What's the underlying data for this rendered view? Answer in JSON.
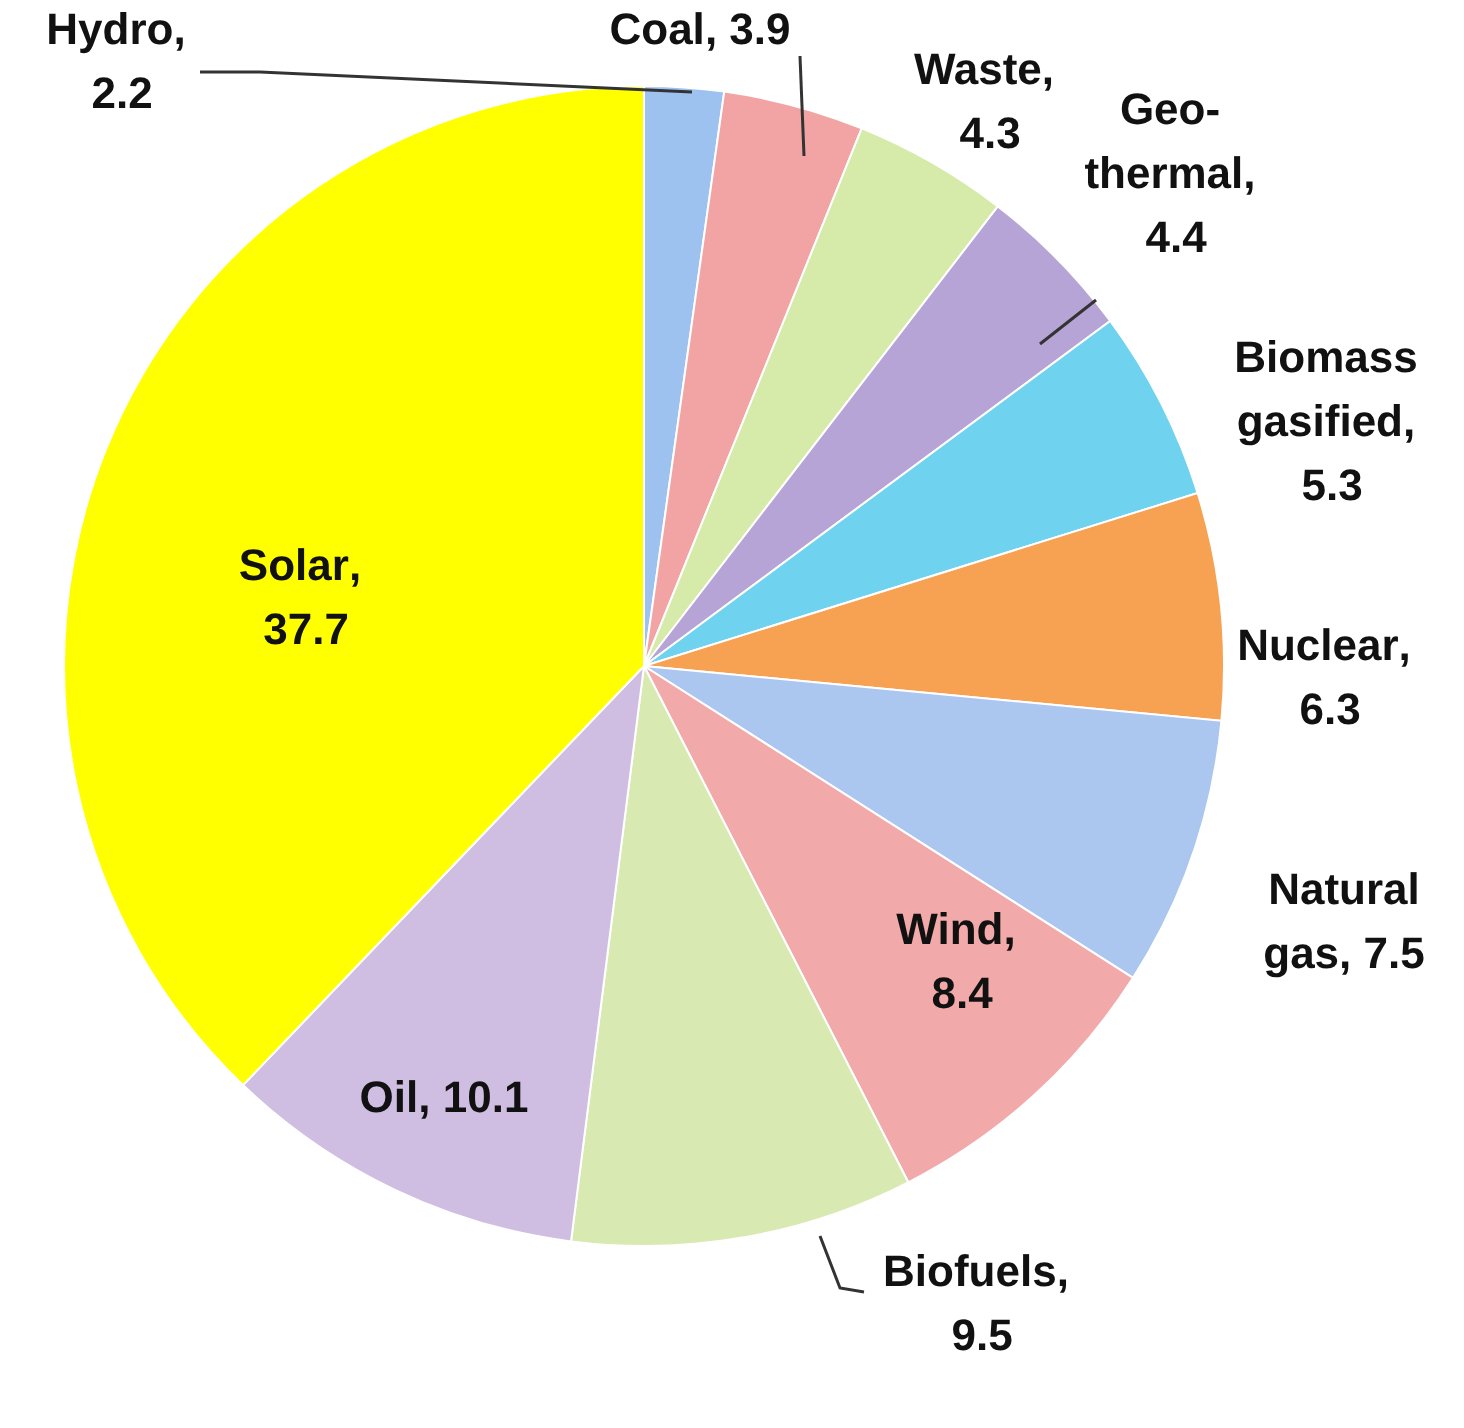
{
  "chart_data": {
    "type": "pie",
    "categories": [
      "Hydro",
      "Coal",
      "Waste",
      "Geo-thermal",
      "Biomass gasified",
      "Nuclear",
      "Natural gas",
      "Wind",
      "Biofuels",
      "Oil",
      "Solar"
    ],
    "values": [
      2.2,
      3.9,
      4.3,
      4.4,
      5.3,
      6.3,
      7.5,
      8.4,
      9.5,
      10.1,
      37.7
    ],
    "colors": [
      "#9ec2f0",
      "#f2a3a3",
      "#d6eaa9",
      "#b7a4d6",
      "#6fd2ee",
      "#f7a152",
      "#abc6ef",
      "#f2a9a9",
      "#d9e9b2",
      "#cfbde2",
      "#ffff00"
    ],
    "value_labels": [
      ", 2.2",
      ", 3.9",
      ", 4.3",
      ", 4.4",
      ", 5.3",
      ", 6.3",
      ", 7.5",
      ", 8.4",
      ", 9.5",
      ", 10.1",
      ", 37.7"
    ],
    "legend": false
  }
}
